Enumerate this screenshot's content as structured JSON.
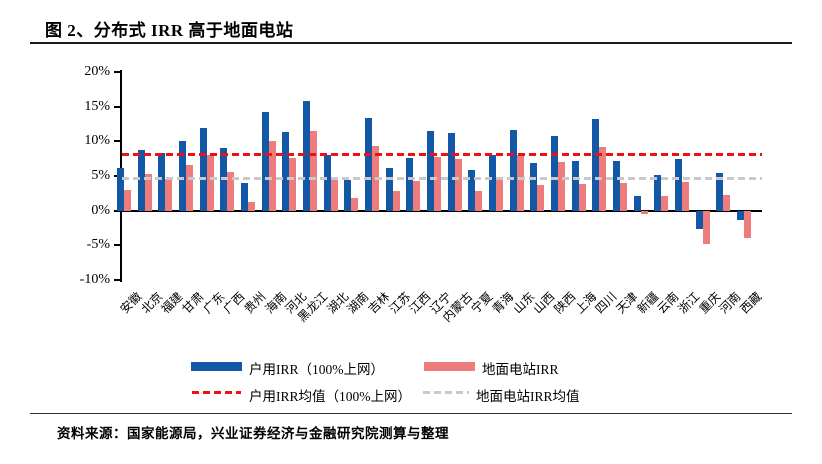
{
  "page": {
    "title": "图 2、分布式 IRR 高于地面电站",
    "source": "资料来源：国家能源局，兴业证券经济与金融研究院测算与整理"
  },
  "chart_data": {
    "type": "bar",
    "title": "图 2、分布式 IRR 高于地面电站",
    "categories": [
      "安徽",
      "北京",
      "福建",
      "甘肃",
      "广东",
      "广西",
      "贵州",
      "海南",
      "河北",
      "黑龙江",
      "湖北",
      "湖南",
      "吉林",
      "江苏",
      "江西",
      "辽宁",
      "内蒙古",
      "宁夏",
      "青海",
      "山东",
      "山西",
      "陕西",
      "上海",
      "四川",
      "天津",
      "新疆",
      "云南",
      "浙江",
      "重庆",
      "河南",
      "西藏"
    ],
    "series": [
      {
        "name": "户用IRR（100%上网）",
        "color": "#1358A6",
        "values": [
          6.1,
          8.8,
          8.3,
          10.1,
          11.9,
          9.0,
          4.0,
          14.2,
          11.4,
          15.8,
          8.0,
          4.4,
          13.3,
          6.1,
          7.6,
          11.5,
          11.2,
          5.9,
          8.1,
          11.6,
          6.9,
          10.8,
          7.1,
          13.2,
          7.2,
          2.1,
          5.2,
          7.5,
          -2.6,
          5.5,
          -1.4
        ]
      },
      {
        "name": "地面电站IRR",
        "color": "#EE7C7C",
        "values": [
          3.0,
          5.3,
          4.5,
          6.6,
          8.0,
          5.6,
          1.3,
          10.1,
          7.6,
          11.5,
          4.5,
          1.8,
          9.3,
          2.9,
          4.3,
          7.8,
          7.5,
          2.8,
          4.4,
          8.0,
          3.7,
          7.0,
          3.9,
          9.2,
          4.0,
          -0.5,
          2.1,
          4.2,
          -4.8,
          2.2,
          -3.9
        ]
      }
    ],
    "reference_lines": [
      {
        "name": "户用IRR均值（100%上网）",
        "value": 8.1,
        "style": "dashed",
        "color": "#EE1111"
      },
      {
        "name": "地面电站IRR均值",
        "value": 4.7,
        "style": "dashed",
        "color": "#C9C9C9"
      }
    ],
    "ylim": [
      -10,
      20
    ],
    "yticks": [
      "20%",
      "15%",
      "10%",
      "5%",
      "0%",
      "-5%",
      "-10%"
    ],
    "grid": "off",
    "legend_position": "bottom"
  }
}
